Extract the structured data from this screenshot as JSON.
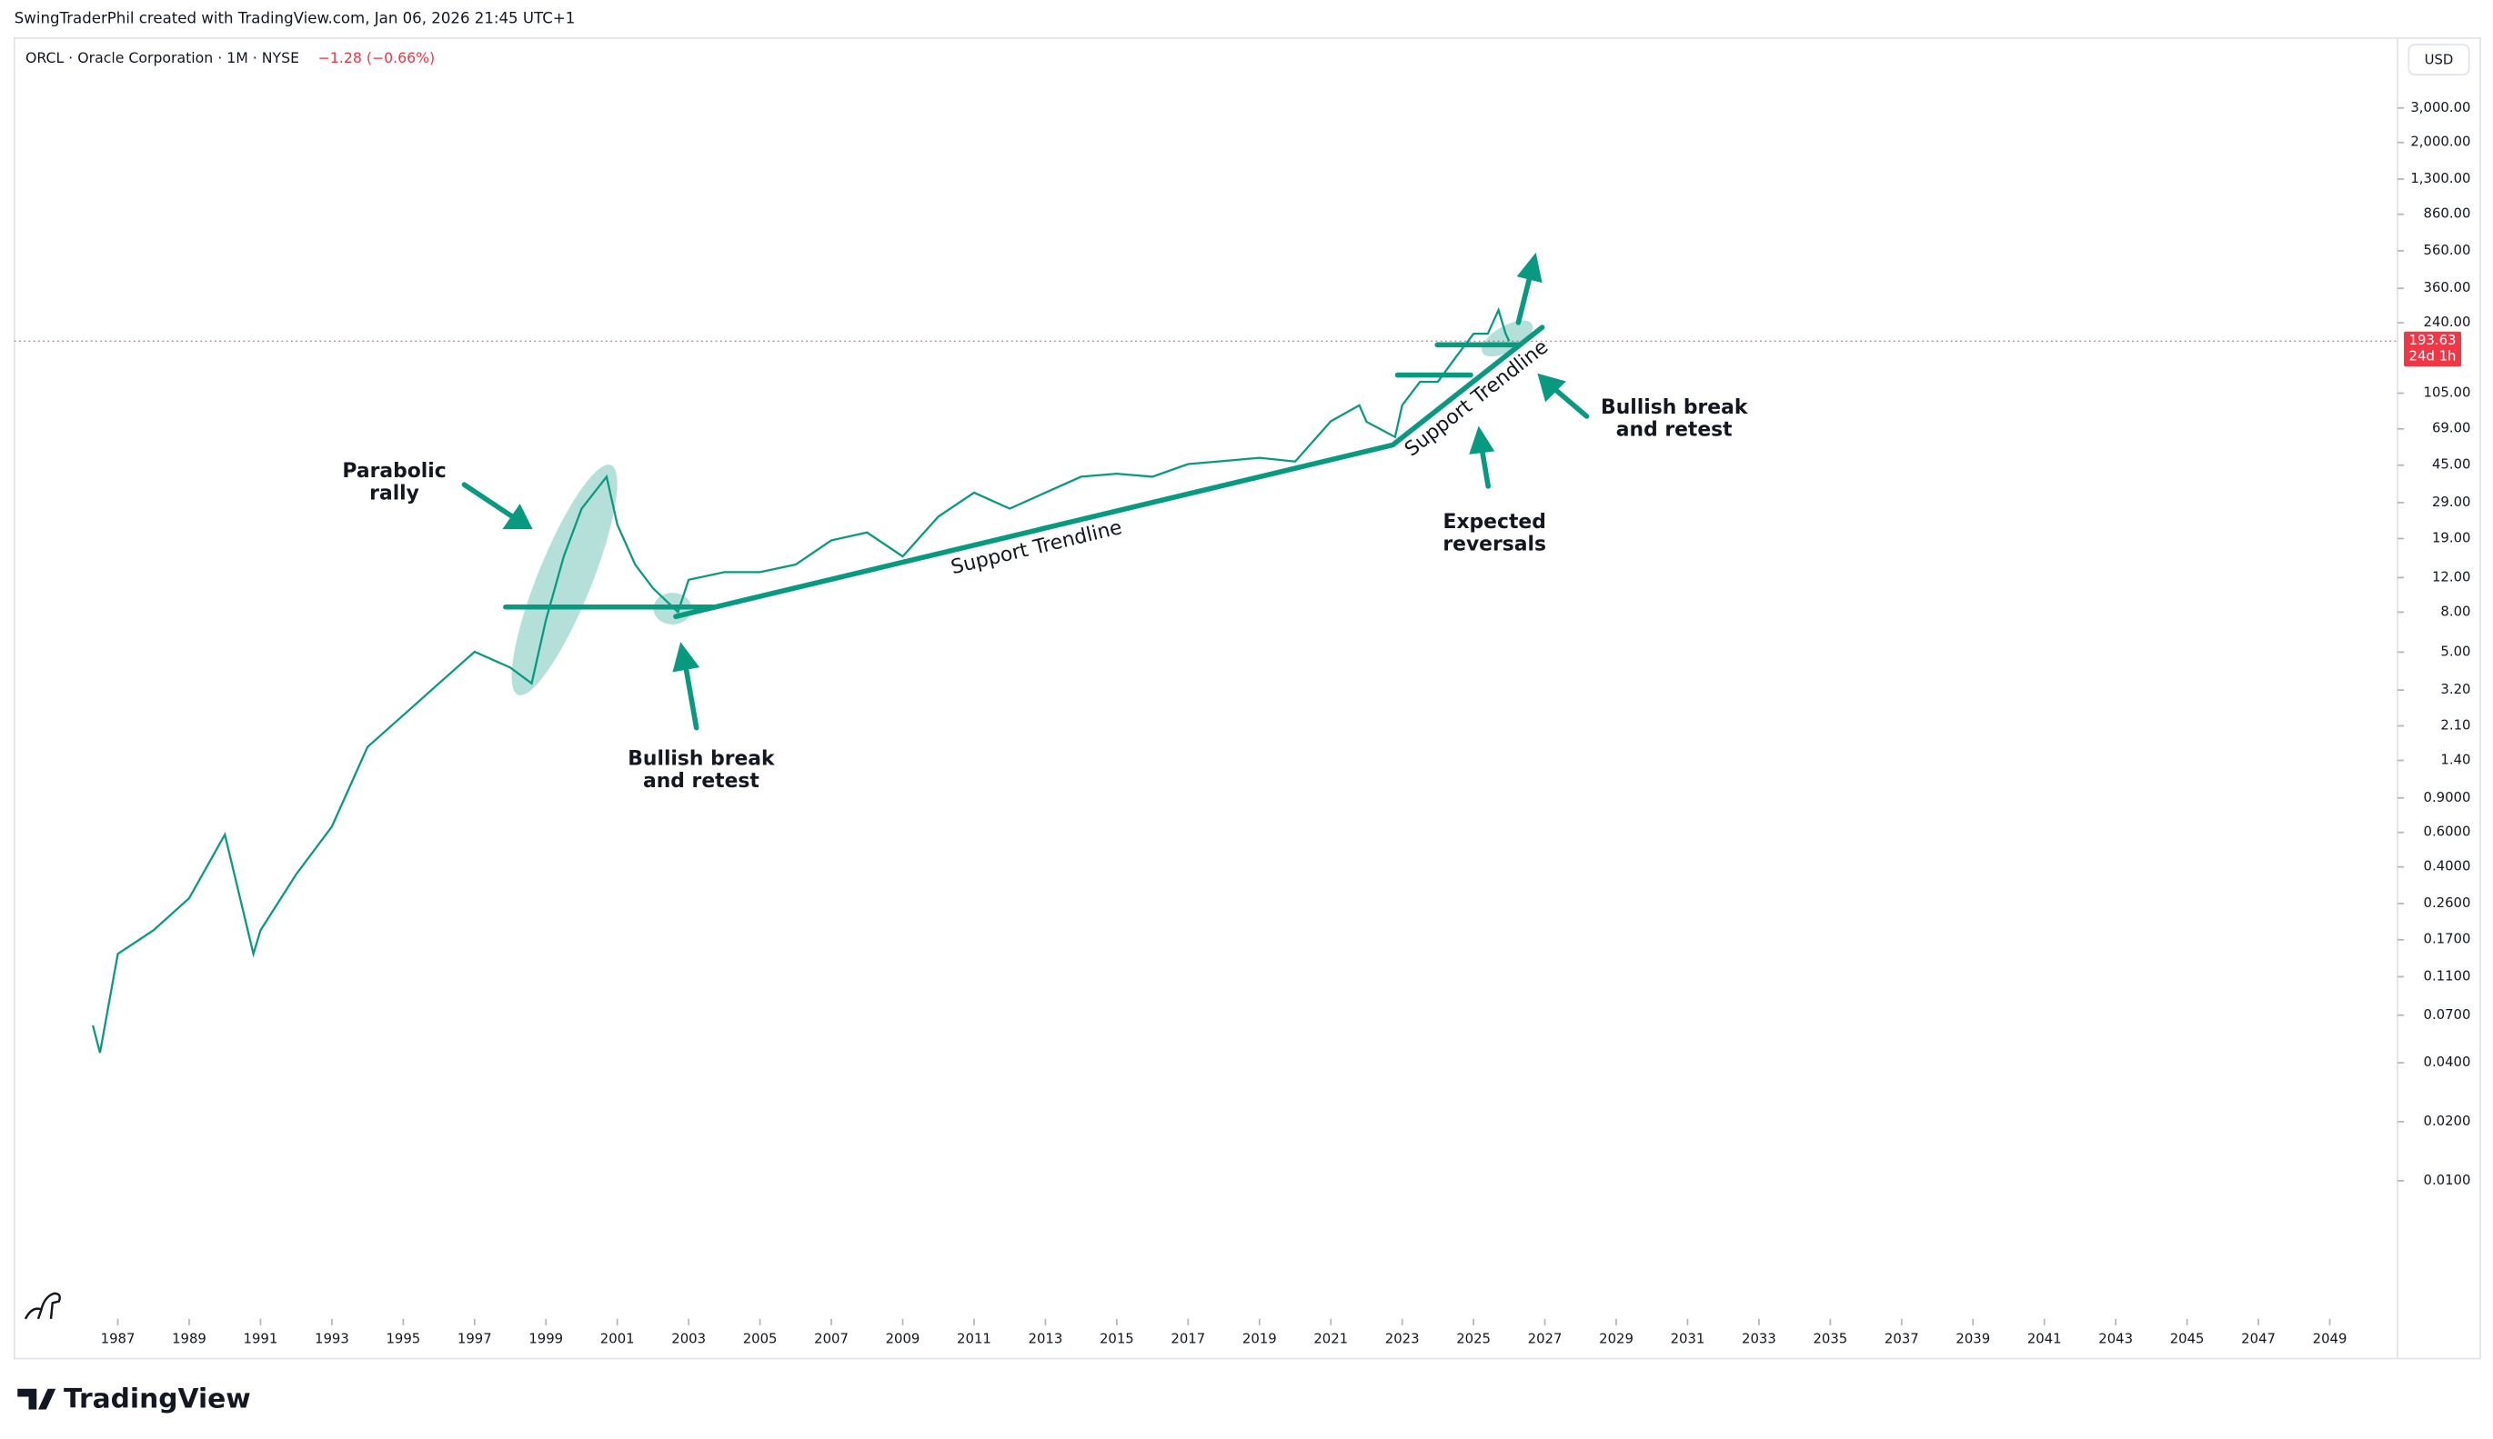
{
  "header": {
    "attribution": "SwingTraderPhil created with TradingView.com, Jan 06, 2026 21:45 UTC+1",
    "symbol": "ORCL · Oracle Corporation · 1M · NYSE",
    "change": "−1.28 (−0.66%)",
    "currency": "USD"
  },
  "chart_data": {
    "type": "line",
    "log_scale": true,
    "grid": false,
    "color": "#089981",
    "x": [
      1986.3,
      1986.5,
      1987,
      1988,
      1989,
      1990,
      1990.8,
      1991,
      1992,
      1993,
      1994,
      1995,
      1996,
      1997,
      1998,
      1998.6,
      1999,
      1999.5,
      2000,
      2000.7,
      2001,
      2001.5,
      2002,
      2002.7,
      2003,
      2004,
      2005,
      2006,
      2007,
      2008,
      2009,
      2010,
      2011,
      2012,
      2013,
      2014,
      2015,
      2016,
      2017,
      2018,
      2019,
      2020,
      2021,
      2021.8,
      2022,
      2022.8,
      2023,
      2023.5,
      2024,
      2024.5,
      2025,
      2025.4,
      2025.7,
      2025.9,
      2026
    ],
    "values": [
      0.062,
      0.045,
      0.144,
      0.19,
      0.277,
      0.585,
      0.144,
      0.19,
      0.367,
      0.643,
      1.64,
      2.38,
      3.46,
      5.02,
      4.17,
      3.46,
      7.3,
      15.4,
      27,
      39.3,
      22.4,
      14.0,
      10.6,
      8.0,
      11.7,
      12.8,
      12.8,
      14.0,
      18.6,
      20.4,
      15.4,
      24.6,
      32.6,
      27,
      32.6,
      39.3,
      40.7,
      39.3,
      45.6,
      47.3,
      49.1,
      47,
      75.5,
      91,
      75,
      62.7,
      91,
      120,
      120,
      160,
      211,
      211,
      279,
      211,
      193.63
    ],
    "last_price": 193.63,
    "countdown": "24d 1h",
    "xlim": [
      1984.1,
      2050.9
    ],
    "ylim": [
      0.00197,
      6820
    ],
    "xticks": [
      1987,
      1989,
      1991,
      1993,
      1995,
      1997,
      1999,
      2001,
      2003,
      2005,
      2007,
      2009,
      2011,
      2013,
      2015,
      2017,
      2019,
      2021,
      2023,
      2025,
      2027,
      2029,
      2031,
      2033,
      2035,
      2037,
      2039,
      2041,
      2043,
      2045,
      2047,
      2049
    ],
    "yticks": [
      {
        "value": 3000,
        "label": "3,000.00"
      },
      {
        "value": 2000,
        "label": "2,000.00"
      },
      {
        "value": 1300,
        "label": "1,300.00"
      },
      {
        "value": 860,
        "label": "860.00"
      },
      {
        "value": 560,
        "label": "560.00"
      },
      {
        "value": 360,
        "label": "360.00"
      },
      {
        "value": 240,
        "label": "240.00"
      },
      {
        "value": 105,
        "label": "105.00"
      },
      {
        "value": 69,
        "label": "69.00"
      },
      {
        "value": 45,
        "label": "45.00"
      },
      {
        "value": 29,
        "label": "29.00"
      },
      {
        "value": 19,
        "label": "19.00"
      },
      {
        "value": 12,
        "label": "12.00"
      },
      {
        "value": 8,
        "label": "8.00"
      },
      {
        "value": 5,
        "label": "5.00"
      },
      {
        "value": 3.2,
        "label": "3.20"
      },
      {
        "value": 2.1,
        "label": "2.10"
      },
      {
        "value": 1.4,
        "label": "1.40"
      },
      {
        "value": 0.9,
        "label": "0.9000"
      },
      {
        "value": 0.6,
        "label": "0.6000"
      },
      {
        "value": 0.4,
        "label": "0.4000"
      },
      {
        "value": 0.26,
        "label": "0.2600"
      },
      {
        "value": 0.17,
        "label": "0.1700"
      },
      {
        "value": 0.11,
        "label": "0.1100"
      },
      {
        "value": 0.07,
        "label": "0.0700"
      },
      {
        "value": 0.04,
        "label": "0.0400"
      },
      {
        "value": 0.02,
        "label": "0.0200"
      },
      {
        "value": 0.01,
        "label": "0.0100"
      }
    ],
    "annotations": [
      {
        "lines": [
          "Parabolic",
          "rally"
        ]
      },
      {
        "lines": [
          "Bullish break",
          "and retest"
        ]
      },
      {
        "lines": [
          "Support Trendline"
        ]
      },
      {
        "lines": [
          "Support Trendline"
        ]
      },
      {
        "lines": [
          "Expected",
          "reversals"
        ]
      },
      {
        "lines": [
          "Bullish break",
          "and retest"
        ]
      }
    ]
  },
  "footer": {
    "logo": "TradingView"
  }
}
